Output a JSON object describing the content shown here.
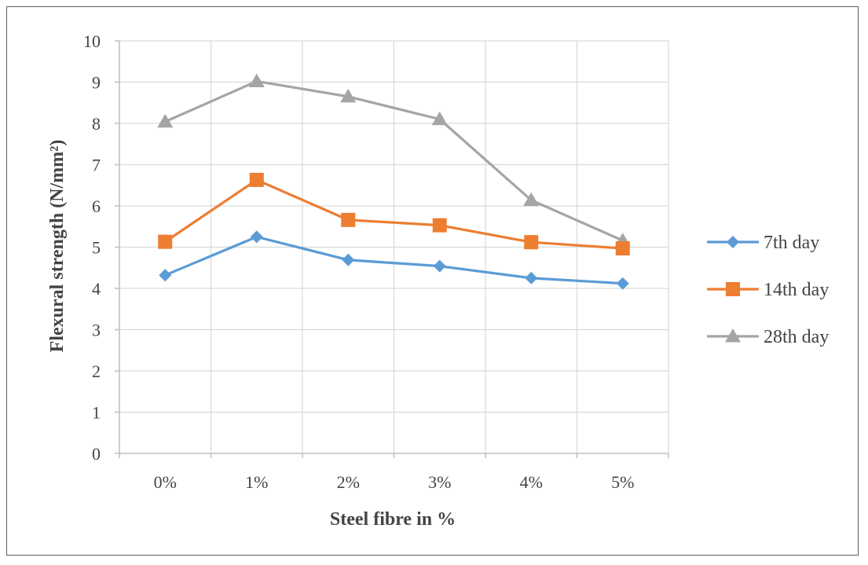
{
  "chart_data": {
    "type": "line",
    "title": "",
    "xlabel": "Steel fibre in %",
    "ylabel": "Flexural strength (N/mm²)",
    "categories": [
      "0%",
      "1%",
      "2%",
      "3%",
      "4%",
      "5%"
    ],
    "ylim": [
      0,
      10
    ],
    "yticks": [
      "0",
      "1",
      "2",
      "3",
      "4",
      "5",
      "6",
      "7",
      "8",
      "9",
      "10"
    ],
    "grid": "vertical and horizontal",
    "legend_position": "right",
    "series": [
      {
        "name": "7th day",
        "values": [
          4.32,
          5.25,
          4.69,
          4.54,
          4.25,
          4.12
        ],
        "color": "#5b9bd5",
        "marker": "diamond"
      },
      {
        "name": "14th day",
        "values": [
          5.13,
          6.63,
          5.66,
          5.53,
          5.12,
          4.97
        ],
        "color": "#ed7d31",
        "marker": "square"
      },
      {
        "name": "28th day",
        "values": [
          8.04,
          9.02,
          8.65,
          8.1,
          6.14,
          5.16
        ],
        "color": "#a5a5a5",
        "marker": "triangle"
      }
    ]
  }
}
